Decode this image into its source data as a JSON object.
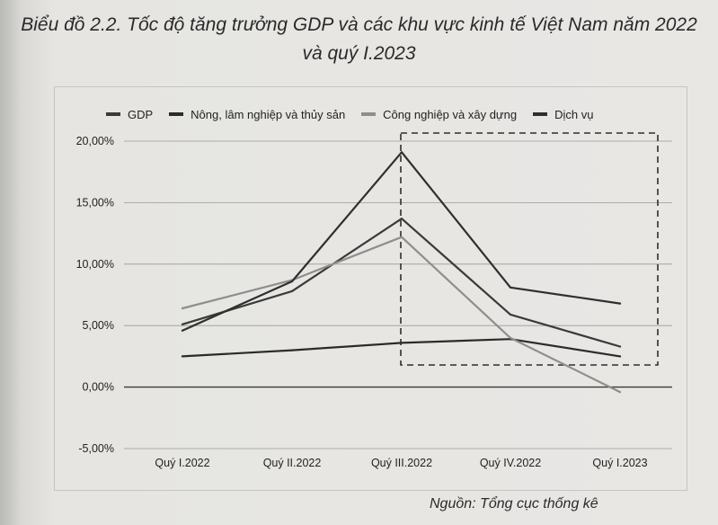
{
  "title_line1": "Biểu đồ 2.2. Tốc độ tăng trưởng GDP và các khu vực kinh tế Việt Nam năm 2022",
  "title_line2": "và quý I.2023",
  "source": "Nguồn: Tổng cục thống kê",
  "chart_data": {
    "type": "line",
    "title": "Biểu đồ 2.2. Tốc độ tăng trưởng GDP và các khu vực kinh tế Việt Nam năm 2022 và quý I.2023",
    "categories": [
      "Quý I.2022",
      "Quý II.2022",
      "Quý III.2022",
      "Quý IV.2022",
      "Quý I.2023"
    ],
    "y_ticks": [
      "-5,00%",
      "0,00%",
      "5,00%",
      "10,00%",
      "15,00%",
      "20,00%"
    ],
    "ylim": [
      -5,
      20
    ],
    "grid": true,
    "legend_position": "top",
    "highlight_box": "Quý III.2022 – Quý I.2023",
    "series": [
      {
        "name": "GDP",
        "color": "#3a3a3a",
        "values": [
          5.1,
          7.8,
          13.7,
          5.9,
          3.3
        ]
      },
      {
        "name": "Nông, lâm nghiệp và thủy sản",
        "color": "#2b2b2b",
        "values": [
          2.5,
          3.0,
          3.6,
          3.9,
          2.5
        ]
      },
      {
        "name": "Công nghiệp và xây dựng",
        "color": "#8e8e8e",
        "values": [
          6.4,
          8.7,
          12.2,
          4.0,
          -0.4
        ]
      },
      {
        "name": "Dịch vụ",
        "color": "#2f2f2f",
        "values": [
          4.6,
          8.6,
          19.1,
          8.1,
          6.8
        ]
      }
    ]
  }
}
